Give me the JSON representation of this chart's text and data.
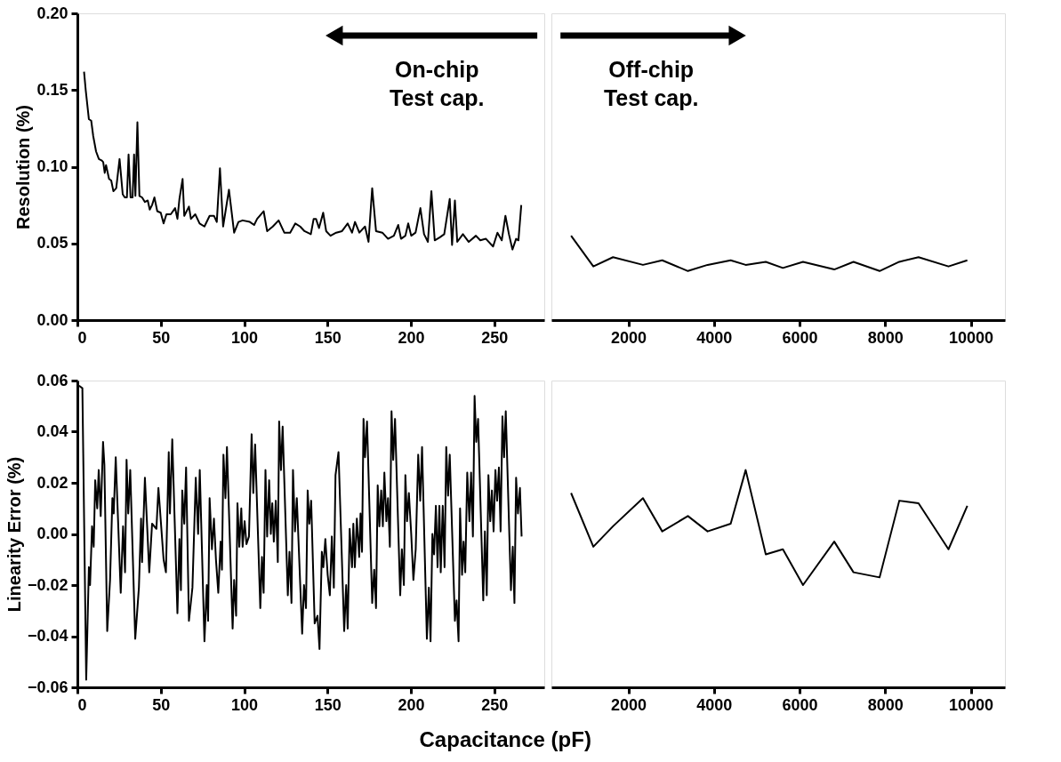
{
  "chart_data": [
    {
      "type": "line",
      "ylabel": "Resolution (%)",
      "annotations": [
        "On-chip\nTest cap."
      ],
      "grid": false,
      "marker": "none",
      "xlim": [
        0,
        280
      ],
      "xticks": [
        0,
        50,
        100,
        150,
        200,
        250
      ],
      "ylim": [
        0,
        0.2
      ],
      "yticks": [
        {
          "value": 0,
          "label": "0.00"
        },
        0.05,
        {
          "value": 0.1,
          "label": "0.10"
        },
        0.15,
        {
          "value": 0.2,
          "label": "0.20"
        }
      ],
      "x": [
        4,
        5,
        6.9,
        8.3,
        9.5,
        11.2,
        12.9,
        14.7,
        15.5,
        16.4,
        17.2,
        19.0,
        20.3,
        21.6,
        23.3,
        25.3,
        27.2,
        28.4,
        29.7,
        30.7,
        31.9,
        33.1,
        34.0,
        34.8,
        36.0,
        37.2,
        38.8,
        40.5,
        42.2,
        43.4,
        44.8,
        46.2,
        47.9,
        50.0,
        51.7,
        53.4,
        56.0,
        58.6,
        60.0,
        61.2,
        63.1,
        64.1,
        66.9,
        68.1,
        70.7,
        73.3,
        76.2,
        79.3,
        81.9,
        83.6,
        85.5,
        87.4,
        90.9,
        94.0,
        96.6,
        99.1,
        103.4,
        106.0,
        107.8,
        111.7,
        113.8,
        117.2,
        120.7,
        124.1,
        127.6,
        130.7,
        133.6,
        136.2,
        140.0,
        141.7,
        143.1,
        144.9,
        147.4,
        149.2,
        151.8,
        155.2,
        158.7,
        162.1,
        164.7,
        166.5,
        169.1,
        172.5,
        174.6,
        176.8,
        179.1,
        182.9,
        186.3,
        189.8,
        192.4,
        194.1,
        196.7,
        198.4,
        200.2,
        202.8,
        205.7,
        207.9,
        210.2,
        212.3,
        214.3,
        217.4,
        220.0,
        223.3,
        224.7,
        226.4,
        227.8,
        231.2,
        234.7,
        239.0,
        241.6,
        245.0,
        249.3,
        251.9,
        254.5,
        256.7,
        258.8,
        260.9,
        263.1,
        264.5,
        266.2
      ],
      "series": [
        {
          "color": "#000000",
          "values": [
            0.162,
            0.15,
            0.131,
            0.13,
            0.12,
            0.11,
            0.105,
            0.104,
            0.103,
            0.096,
            0.101,
            0.092,
            0.091,
            0.084,
            0.086,
            0.105,
            0.082,
            0.08,
            0.08,
            0.108,
            0.08,
            0.08,
            0.108,
            0.081,
            0.129,
            0.081,
            0.08,
            0.077,
            0.078,
            0.072,
            0.075,
            0.08,
            0.071,
            0.07,
            0.063,
            0.069,
            0.069,
            0.073,
            0.066,
            0.079,
            0.092,
            0.068,
            0.074,
            0.066,
            0.069,
            0.063,
            0.061,
            0.068,
            0.068,
            0.064,
            0.099,
            0.061,
            0.085,
            0.057,
            0.064,
            0.065,
            0.064,
            0.062,
            0.066,
            0.071,
            0.058,
            0.061,
            0.065,
            0.057,
            0.057,
            0.063,
            0.061,
            0.058,
            0.056,
            0.066,
            0.066,
            0.06,
            0.07,
            0.058,
            0.055,
            0.057,
            0.058,
            0.063,
            0.057,
            0.064,
            0.057,
            0.061,
            0.051,
            0.086,
            0.058,
            0.057,
            0.053,
            0.055,
            0.062,
            0.053,
            0.055,
            0.063,
            0.055,
            0.057,
            0.073,
            0.056,
            0.051,
            0.084,
            0.052,
            0.054,
            0.056,
            0.079,
            0.049,
            0.078,
            0.051,
            0.056,
            0.051,
            0.055,
            0.052,
            0.053,
            0.048,
            0.057,
            0.052,
            0.068,
            0.056,
            0.046,
            0.053,
            0.052,
            0.075
          ]
        }
      ]
    },
    {
      "type": "line",
      "annotations": [
        "Off-chip\nTest cap."
      ],
      "grid": false,
      "marker": "none",
      "tick_labels": "x",
      "xlim": [
        200,
        10800
      ],
      "xticks": [
        2000,
        4000,
        6000,
        8000,
        10000
      ],
      "ylim": [
        0,
        0.2
      ],
      "x": [
        660,
        1180,
        1640,
        2340,
        2790,
        3390,
        3850,
        4390,
        4740,
        5210,
        5610,
        6080,
        6810,
        7260,
        7870,
        8330,
        8780,
        9480,
        9920
      ],
      "series": [
        {
          "color": "#000000",
          "values": [
            0.055,
            0.035,
            0.041,
            0.036,
            0.039,
            0.032,
            0.036,
            0.039,
            0.036,
            0.038,
            0.034,
            0.038,
            0.033,
            0.038,
            0.032,
            0.038,
            0.041,
            0.035,
            0.039
          ]
        }
      ]
    },
    {
      "type": "line",
      "ylabel": "Linearity Error (%)",
      "xlabel": "Capacitance (pF)",
      "grid": false,
      "marker": "none",
      "xlim": [
        0,
        280
      ],
      "xticks": [
        0,
        50,
        100,
        150,
        200,
        250
      ],
      "ylim": [
        -0.06,
        0.06
      ],
      "yticks": [
        -0.06,
        -0.04,
        -0.02,
        {
          "value": 0,
          "label": "0.00"
        },
        0.02,
        0.04,
        0.06
      ],
      "x": [
        1,
        3,
        5.3,
        6.9,
        7.6,
        8.8,
        9.8,
        10.7,
        11.9,
        12.8,
        14.0,
        15.4,
        16.2,
        17.9,
        19.6,
        21.0,
        21.8,
        23.0,
        26.0,
        27.4,
        28.6,
        29.5,
        30.5,
        31.7,
        34.7,
        36.9,
        38.2,
        38.8,
        40.5,
        43.1,
        44.8,
        47.4,
        48.6,
        51.7,
        53.1,
        54.8,
        55.5,
        56.9,
        60.0,
        61.2,
        62.1,
        62.9,
        64.1,
        65.2,
        66.9,
        69.0,
        71.0,
        72.4,
        73.4,
        76.2,
        77.6,
        78.4,
        79.3,
        80.7,
        81.9,
        83.1,
        84.5,
        85.9,
        86.7,
        87.6,
        88.8,
        89.7,
        93.1,
        94.0,
        95.2,
        96.0,
        97.1,
        98.3,
        99.1,
        100.3,
        101.4,
        102.9,
        104.5,
        105.5,
        106.6,
        109.7,
        110.7,
        111.7,
        112.8,
        113.8,
        115.0,
        116.0,
        116.9,
        117.8,
        119.0,
        120.2,
        121.0,
        122.1,
        123.1,
        126.2,
        127.2,
        128.4,
        129.3,
        130.5,
        131.6,
        134.8,
        135.9,
        137.1,
        138.1,
        139.1,
        140.2,
        142.3,
        144.0,
        145.2,
        146.6,
        147.5,
        148.7,
        150.1,
        151.4,
        152.6,
        153.8,
        154.8,
        156.6,
        160.0,
        161.2,
        162.1,
        163.3,
        164.7,
        165.5,
        166.4,
        167.6,
        169.0,
        169.8,
        170.7,
        171.6,
        172.5,
        173.7,
        176.8,
        178.0,
        179.1,
        180.1,
        181.1,
        182.2,
        183.2,
        184.1,
        185.3,
        186.3,
        187.4,
        188.4,
        189.4,
        190.5,
        193.6,
        194.6,
        195.8,
        196.7,
        197.7,
        198.8,
        200.2,
        201.5,
        202.9,
        204.4,
        205.6,
        206.7,
        209.6,
        210.8,
        211.8,
        212.9,
        213.9,
        215.0,
        216.0,
        217.1,
        217.9,
        219.1,
        220.2,
        221.2,
        222.3,
        223.3,
        226.4,
        227.4,
        228.6,
        229.5,
        230.7,
        231.6,
        232.6,
        233.8,
        235.1,
        236.1,
        237.2,
        238.2,
        239.2,
        240.3,
        243.4,
        244.4,
        245.5,
        246.5,
        247.6,
        248.6,
        249.6,
        250.7,
        251.7,
        252.8,
        253.8,
        254.9,
        255.9,
        256.9,
        260.0,
        261.1,
        262.1,
        263.1,
        264.2,
        265.4,
        266.4
      ],
      "series": [
        {
          "color": "#000000",
          "values": [
            0.058,
            0.057,
            -0.057,
            -0.013,
            -0.02,
            0.003,
            -0.005,
            0.021,
            0.01,
            0.025,
            0.007,
            0.036,
            0.027,
            -0.038,
            -0.018,
            0.014,
            0.008,
            0.03,
            -0.023,
            0.003,
            -0.015,
            0.029,
            0.008,
            0.025,
            -0.041,
            -0.021,
            0.006,
            -0.011,
            0.022,
            -0.015,
            0.004,
            0.002,
            0.018,
            -0.01,
            -0.015,
            0.032,
            0.008,
            0.037,
            -0.031,
            -0.002,
            -0.022,
            0.017,
            0.004,
            0.026,
            -0.034,
            -0.021,
            0.022,
            0.0,
            0.025,
            -0.042,
            -0.02,
            -0.034,
            0.014,
            -0.006,
            0.006,
            -0.01,
            -0.023,
            -0.003,
            -0.014,
            0.031,
            0.014,
            0.034,
            -0.037,
            -0.018,
            -0.032,
            0.012,
            -0.005,
            0.01,
            -0.005,
            0.005,
            -0.004,
            -0.001,
            0.039,
            0.016,
            0.035,
            -0.029,
            -0.009,
            -0.023,
            0.025,
            -0.001,
            0.021,
            0.0,
            0.012,
            -0.003,
            0.013,
            -0.011,
            0.044,
            0.025,
            0.042,
            -0.024,
            -0.007,
            -0.027,
            0.025,
            0.001,
            0.014,
            -0.039,
            -0.02,
            -0.029,
            0.017,
            0.004,
            0.013,
            -0.035,
            -0.032,
            -0.045,
            -0.007,
            -0.013,
            -0.002,
            -0.016,
            -0.024,
            -0.001,
            -0.021,
            0.023,
            0.032,
            -0.038,
            -0.02,
            -0.037,
            0.002,
            -0.013,
            0.004,
            -0.013,
            0.006,
            -0.009,
            0.008,
            -0.007,
            0.045,
            0.03,
            0.044,
            -0.027,
            -0.014,
            -0.029,
            0.019,
            0.003,
            0.017,
            0.003,
            0.024,
            0.005,
            0.014,
            -0.005,
            0.048,
            0.029,
            0.045,
            -0.024,
            -0.006,
            -0.02,
            0.023,
            0.005,
            0.016,
            0.0,
            -0.018,
            -0.006,
            0.031,
            0.013,
            0.034,
            -0.041,
            -0.021,
            -0.042,
            0.0,
            -0.008,
            0.011,
            -0.013,
            0.011,
            -0.015,
            0.011,
            -0.013,
            0.034,
            0.015,
            0.031,
            -0.034,
            -0.026,
            -0.042,
            0.01,
            -0.016,
            -0.003,
            -0.015,
            0.024,
            0.005,
            0.024,
            -0.001,
            0.054,
            0.036,
            0.045,
            -0.026,
            0.001,
            -0.024,
            0.023,
            0.005,
            0.017,
            0.001,
            0.025,
            0.013,
            0.026,
            0.001,
            0.046,
            0.03,
            0.048,
            -0.022,
            -0.005,
            -0.027,
            0.022,
            0.008,
            0.018,
            -0.001
          ]
        }
      ]
    },
    {
      "type": "line",
      "grid": false,
      "marker": "none",
      "tick_labels": "x",
      "xlim": [
        200,
        10800
      ],
      "xticks": [
        2000,
        4000,
        6000,
        8000,
        10000
      ],
      "ylim": [
        -0.06,
        0.06
      ],
      "x": [
        660,
        1180,
        1640,
        2340,
        2790,
        3390,
        3850,
        4390,
        4740,
        5210,
        5610,
        6080,
        6810,
        7260,
        7870,
        8330,
        8780,
        9480,
        9920
      ],
      "series": [
        {
          "color": "#000000",
          "values": [
            0.016,
            -0.005,
            0.003,
            0.014,
            0.001,
            0.007,
            0.001,
            0.004,
            0.025,
            -0.008,
            -0.006,
            -0.02,
            -0.003,
            -0.015,
            -0.017,
            0.013,
            0.012,
            -0.006,
            0.011
          ]
        }
      ]
    }
  ]
}
